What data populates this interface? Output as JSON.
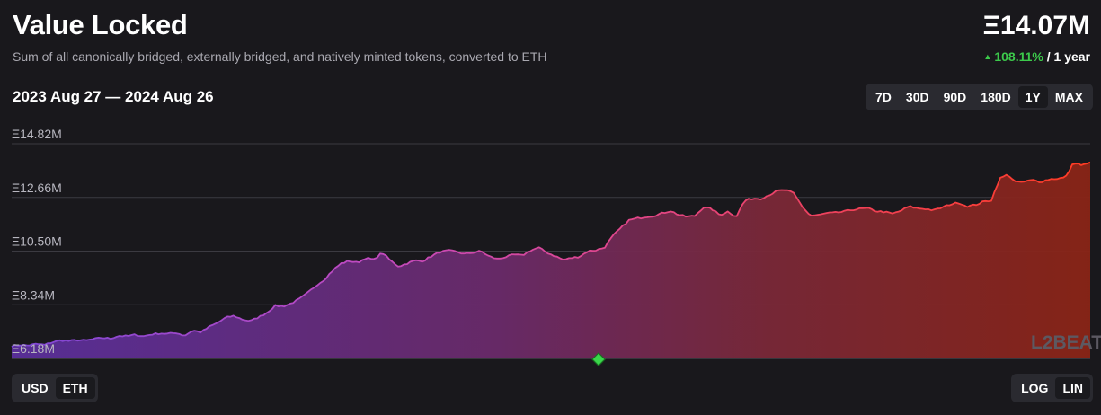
{
  "header": {
    "title": "Value Locked",
    "subtitle": "Sum of all canonically bridged, externally bridged, and natively minted tokens, converted to ETH",
    "value": "Ξ14.07M",
    "change_pct": "108.11%",
    "change_period": "/ 1 year",
    "date_range": "2023 Aug 27 — 2024 Aug 26"
  },
  "timeframes": [
    "7D",
    "30D",
    "90D",
    "180D",
    "1Y",
    "MAX"
  ],
  "active_timeframe": "1Y",
  "units": {
    "usd": "USD",
    "eth": "ETH",
    "active": "ETH"
  },
  "scales": {
    "log": "LOG",
    "lin": "LIN",
    "active": "LIN"
  },
  "watermark": "L2BEAT",
  "colors": {
    "gradient_start": "#7a3fc0",
    "gradient_mid": "#c13b9e",
    "gradient_end": "#ff3c1f",
    "positive": "#3cc94b",
    "marker": "#3ad64a"
  },
  "chart_data": {
    "type": "area",
    "x_start": "2023 Aug 27",
    "x_end": "2024 Aug 26",
    "y_unit": "Ξ (millions)",
    "y_ticks": [
      "Ξ6.18M",
      "Ξ8.34M",
      "Ξ10.50M",
      "Ξ12.66M",
      "Ξ14.82M"
    ],
    "ylim": [
      6.18,
      14.82
    ],
    "grid": true,
    "scale": "linear",
    "series": [
      {
        "values": [
          6.68,
          6.72,
          6.7,
          6.76,
          6.72,
          6.84,
          6.91,
          6.88,
          6.92,
          6.9,
          6.96,
          7.01,
          6.98,
          7.09,
          7.07,
          7.13,
          7.07,
          7.15,
          7.19,
          7.17,
          7.21,
          7.09,
          7.31,
          7.23,
          7.45,
          7.61,
          7.82,
          7.89,
          7.75,
          7.68,
          7.84,
          8.02,
          8.3,
          8.28,
          8.4,
          8.58,
          8.83,
          9.12,
          9.36,
          9.72,
          10.0,
          10.1,
          10.03,
          10.22,
          10.15,
          10.44,
          10.12,
          9.88,
          10.0,
          10.12,
          10.1,
          10.3,
          10.46,
          10.52,
          10.48,
          10.38,
          10.44,
          10.5,
          10.28,
          10.18,
          10.26,
          10.36,
          10.32,
          10.52,
          10.64,
          10.44,
          10.3,
          10.15,
          10.22,
          10.28,
          10.5,
          10.54,
          10.64,
          11.1,
          11.43,
          11.75,
          11.82,
          11.88,
          11.92,
          12.02,
          12.12,
          11.96,
          11.88,
          11.92,
          12.26,
          12.2,
          11.95,
          12.09,
          11.88,
          12.52,
          12.62,
          12.61,
          12.76,
          12.92,
          12.96,
          12.82,
          12.3,
          11.92,
          11.95,
          12.02,
          12.04,
          12.08,
          12.16,
          12.2,
          12.22,
          12.1,
          12.08,
          12.0,
          12.12,
          12.3,
          12.22,
          12.2,
          12.14,
          12.25,
          12.38,
          12.45,
          12.3,
          12.35,
          12.48,
          12.55,
          13.42,
          13.58,
          13.26,
          13.29,
          13.36,
          13.28,
          13.39,
          13.42,
          13.46
        ],
        "final": 14.07
      }
    ],
    "marker": {
      "position": 0.5,
      "shape": "diamond"
    }
  }
}
